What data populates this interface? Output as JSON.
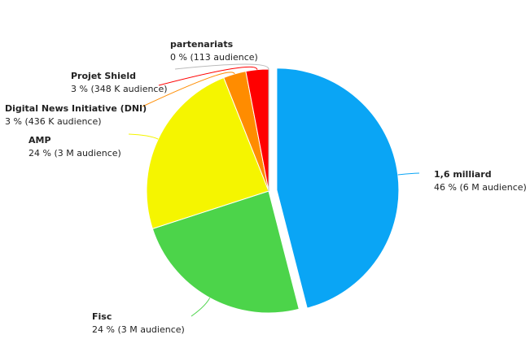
{
  "chart_data": {
    "type": "pie",
    "categories": [
      "1,6 milliard",
      "Fisc",
      "AMP",
      "Digital News Initiative (DNI)",
      "Projet Shield",
      "partenariats"
    ],
    "values": [
      46,
      24,
      24,
      3,
      3,
      0
    ],
    "value_labels": [
      "46 % (6 M audience)",
      "24 % (3 M audience)",
      "24 % (3 M audience)",
      "3 % (436 K audience)",
      "3 % (348 K audience)",
      "0 % (113 audience)"
    ],
    "colors": [
      "#0aa5f5",
      "#4cd44a",
      "#f5f500",
      "#ff8c00",
      "#ff0000",
      "#bbbbbb"
    ]
  }
}
